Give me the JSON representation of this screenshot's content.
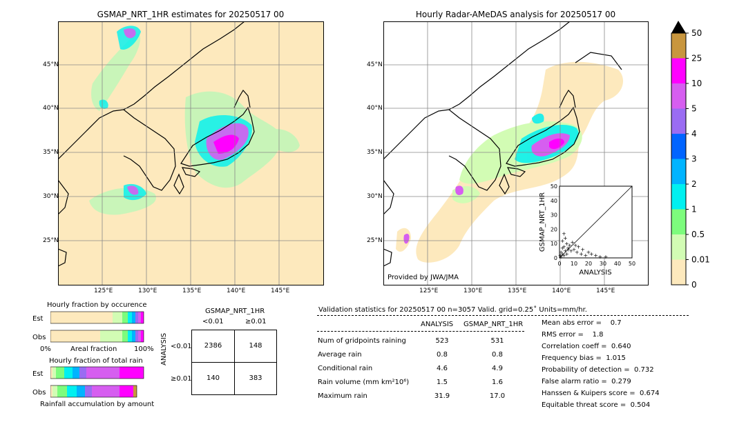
{
  "left_map": {
    "title": "GSMAP_NRT_1HR estimates for 20250517 00",
    "lat_labels": [
      "45°N",
      "40°N",
      "35°N",
      "30°N",
      "25°N"
    ],
    "lon_labels": [
      "125°E",
      "130°E",
      "135°E",
      "140°E",
      "145°E"
    ]
  },
  "right_map": {
    "title": "Hourly Radar-AMeDAS analysis for 20250517 00",
    "lat_labels": [
      "45°N",
      "40°N",
      "35°N",
      "30°N",
      "25°N"
    ],
    "lon_labels": [
      "125°E",
      "130°E",
      "135°E",
      "140°E",
      "145°E"
    ],
    "credit": "Provided by JWA/JMA"
  },
  "colorbar": {
    "levels": [
      "50",
      "25",
      "10",
      "5",
      "4",
      "3",
      "2",
      "1",
      "0.5",
      "0.01",
      "0"
    ],
    "colors": [
      "#c8963e",
      "#ff00ff",
      "#d65ef0",
      "#9a6cf2",
      "#0064ff",
      "#00b4ff",
      "#00f0f0",
      "#7dfc7d",
      "#d2fcb4",
      "#fde9bd"
    ]
  },
  "chart_data": [
    {
      "type": "scatter",
      "xlabel": "ANALYSIS",
      "ylabel": "GSMAP_NRT_1HR",
      "xlim": [
        0,
        50
      ],
      "ylim": [
        0,
        50
      ],
      "x_ticks": [
        "0",
        "10",
        "20",
        "30",
        "40",
        "50"
      ],
      "y_ticks": [
        "0",
        "10",
        "20",
        "30",
        "40",
        "50"
      ],
      "points": [
        [
          1,
          1
        ],
        [
          2,
          3
        ],
        [
          3,
          2
        ],
        [
          4,
          5
        ],
        [
          5,
          3
        ],
        [
          6,
          7
        ],
        [
          8,
          5
        ],
        [
          10,
          6
        ],
        [
          12,
          4
        ],
        [
          15,
          3
        ],
        [
          18,
          2
        ],
        [
          22,
          3
        ],
        [
          25,
          2
        ],
        [
          28,
          1
        ],
        [
          31.9,
          1
        ],
        [
          3,
          8
        ],
        [
          5,
          10
        ],
        [
          2,
          12
        ],
        [
          7,
          9
        ],
        [
          9,
          11
        ],
        [
          4,
          14
        ],
        [
          6,
          6
        ],
        [
          1,
          4
        ],
        [
          2,
          7
        ],
        [
          11,
          9
        ],
        [
          13,
          8
        ],
        [
          16,
          6
        ],
        [
          20,
          4
        ],
        [
          3,
          17
        ],
        [
          0.5,
          2
        ]
      ]
    },
    {
      "type": "bar",
      "title": "Hourly fraction by occurence",
      "categories": [
        "Est",
        "Obs"
      ],
      "xlabel": "Areal fraction",
      "x_ticks": [
        "0%",
        "100%"
      ]
    },
    {
      "type": "bar",
      "title": "Hourly fraction of total rain",
      "categories": [
        "Est",
        "Obs"
      ],
      "xlabel": "Rainfall accumulation by amount"
    }
  ],
  "contingency": {
    "title": "GSMAP_NRT_1HR",
    "col_headers": [
      "<0.01",
      "≥0.01"
    ],
    "row_headers": [
      "<0.01",
      "≥0.01"
    ],
    "row_axis_label": "ANALYSIS",
    "cells": [
      [
        "2386",
        "148"
      ],
      [
        "140",
        "383"
      ]
    ]
  },
  "validation": {
    "header": "Validation statistics for 20250517 00  n=3057 Valid. grid=0.25˚ Units=mm/hr.",
    "col_analysis": "ANALYSIS",
    "col_gsmap": "GSMAP_NRT_1HR",
    "rows": [
      {
        "label": "Num of gridpoints raining",
        "analysis": "523",
        "gsmap": "531"
      },
      {
        "label": "Average rain",
        "analysis": "0.8",
        "gsmap": "0.8"
      },
      {
        "label": "Conditional rain",
        "analysis": "4.6",
        "gsmap": "4.9"
      },
      {
        "label": "Rain volume (mm km²10⁶)",
        "analysis": "1.5",
        "gsmap": "1.6"
      },
      {
        "label": "Maximum rain",
        "analysis": "31.9",
        "gsmap": "17.0"
      }
    ],
    "scores": [
      "Mean abs error =    0.7",
      "RMS error =    1.8",
      "Correlation coeff =  0.640",
      "Frequency bias =  1.015",
      "Probability of detection =  0.732",
      "False alarm ratio =  0.279",
      "Hanssen & Kuipers score =  0.674",
      "Equitable threat score =  0.504"
    ]
  }
}
